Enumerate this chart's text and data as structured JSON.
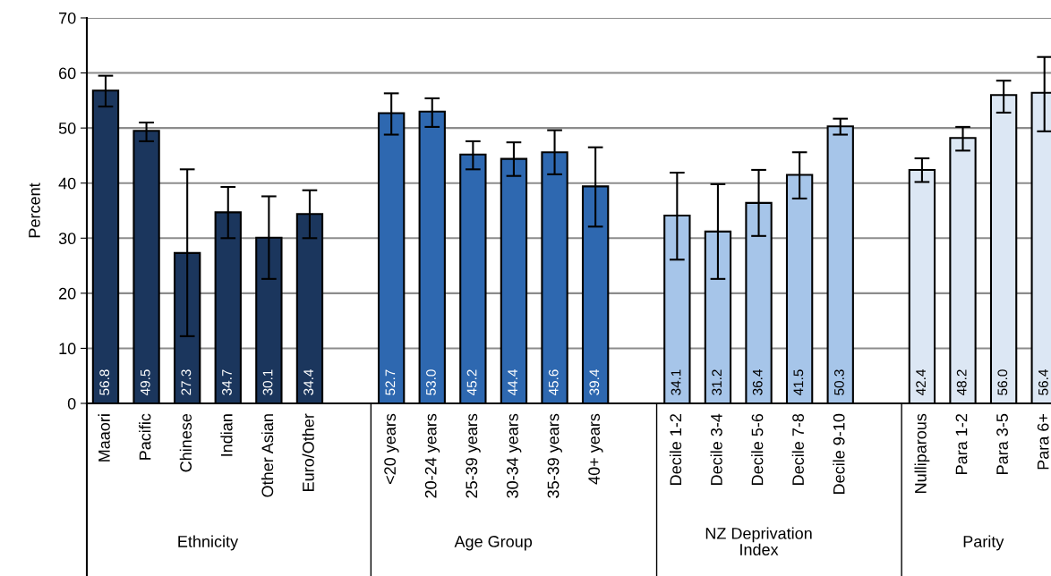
{
  "chart_data": {
    "type": "bar",
    "ylabel": "Percent",
    "categories": [
      "Maaori",
      "Pacific",
      "Chinese",
      "Indian",
      "Other Asian",
      "Euro/Other",
      null,
      "<20 years",
      "20-24 years",
      "25-39 years",
      "30-34 years",
      "35-39 years",
      "40+ years",
      null,
      "Decile 1-2",
      "Decile 3-4",
      "Decile 5-6",
      "Decile 7-8",
      "Decile 9-10",
      null,
      "Nulliparous",
      "Para 1-2",
      "Para 3-5",
      "Para 6+"
    ],
    "values": [
      56.8,
      49.5,
      27.3,
      34.7,
      30.1,
      34.4,
      null,
      52.7,
      53.0,
      45.2,
      44.4,
      45.6,
      39.4,
      null,
      34.1,
      31.2,
      36.4,
      41.5,
      50.3,
      null,
      42.4,
      48.2,
      56.0,
      56.4
    ],
    "colors": [
      "#1b365d",
      "#1b365d",
      "#1b365d",
      "#1b365d",
      "#1b365d",
      "#1b365d",
      null,
      "#2e68b0",
      "#2e68b0",
      "#2e68b0",
      "#2e68b0",
      "#2e68b0",
      "#2e68b0",
      null,
      "#a6c5e9",
      "#a6c5e9",
      "#a6c5e9",
      "#a6c5e9",
      "#a6c5e9",
      null,
      "#dce7f4",
      "#dce7f4",
      "#dce7f4",
      "#dce7f4"
    ],
    "errors": [
      [
        53.9,
        59.5
      ],
      [
        47.6,
        51.0
      ],
      [
        12.2,
        42.5
      ],
      [
        30.0,
        39.3
      ],
      [
        22.6,
        37.6
      ],
      [
        30.0,
        38.7
      ],
      null,
      [
        48.8,
        56.3
      ],
      [
        50.2,
        55.4
      ],
      [
        42.5,
        47.6
      ],
      [
        41.3,
        47.4
      ],
      [
        41.6,
        49.6
      ],
      [
        32.1,
        46.5
      ],
      null,
      [
        26.1,
        41.9
      ],
      [
        22.6,
        39.8
      ],
      [
        30.4,
        42.4
      ],
      [
        37.2,
        45.6
      ],
      [
        48.8,
        51.7
      ],
      null,
      [
        40.2,
        44.5
      ],
      [
        45.9,
        50.2
      ],
      [
        52.8,
        58.6
      ],
      [
        49.4,
        62.9
      ]
    ],
    "annotations": [
      "Ethnicity",
      "Age Group",
      "NZ Deprivation\nIndex",
      "Parity"
    ],
    "ylim": [
      0,
      70
    ],
    "yticks": [
      0,
      10,
      20,
      30,
      40,
      50,
      60,
      70
    ],
    "grid": "y",
    "value_labels": [
      "56.8",
      "49.5",
      "27.3",
      "34.7",
      "30.1",
      "34.4",
      null,
      "52.7",
      "53.0",
      "45.2",
      "44.4",
      "45.6",
      "39.4",
      null,
      "34.1",
      "31.2",
      "36.4",
      "41.5",
      "50.3",
      null,
      "42.4",
      "48.2",
      "56.0",
      "56.4"
    ]
  }
}
